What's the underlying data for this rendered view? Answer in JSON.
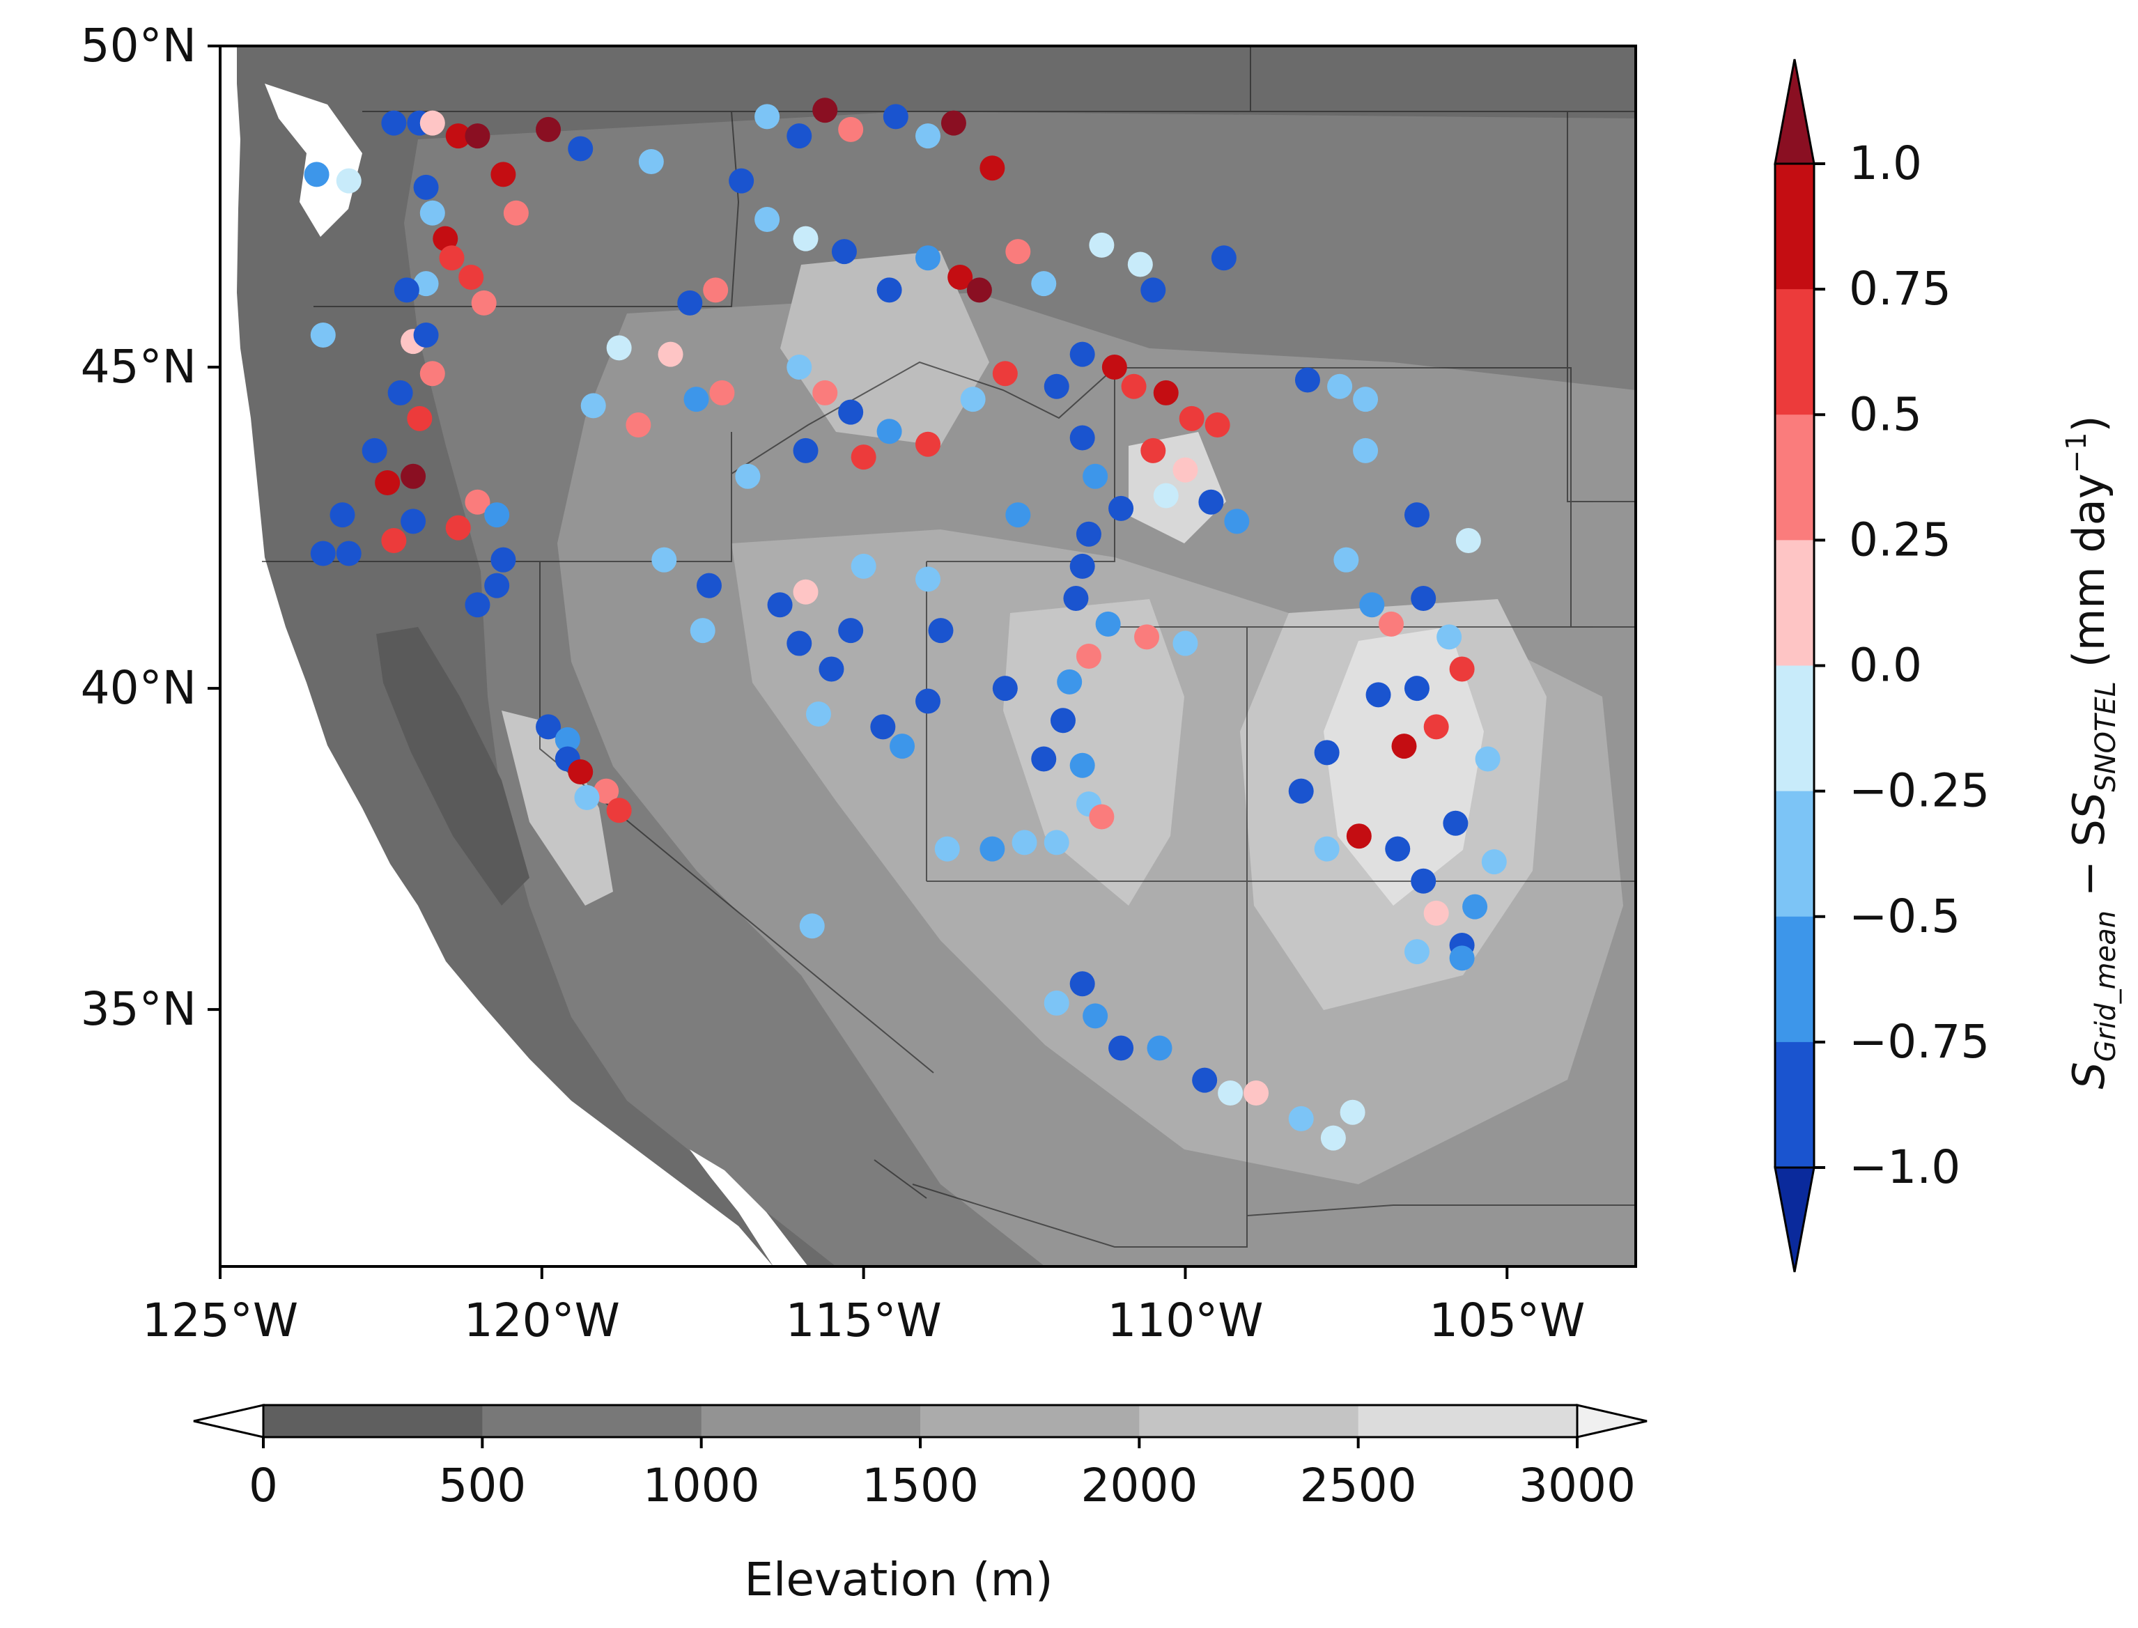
{
  "map": {
    "lat_labels": [
      "50°N",
      "45°N",
      "40°N",
      "35°N"
    ],
    "lat_values": [
      50,
      45,
      40,
      35
    ],
    "lon_labels": [
      "125°W",
      "120°W",
      "115°W",
      "110°W",
      "105°W"
    ],
    "lon_values": [
      -125,
      -120,
      -115,
      -110,
      -105
    ],
    "extent": {
      "lon_min": -125,
      "lon_max": -103,
      "lat_min": 31,
      "lat_max": 50
    }
  },
  "elevation_colorbar": {
    "label": "Elevation (m)",
    "ticks": [
      "0",
      "500",
      "1000",
      "1500",
      "2000",
      "2500",
      "3000"
    ],
    "colors": [
      "#5f5f5f",
      "#787878",
      "#939393",
      "#ababab",
      "#c4c4c4",
      "#dcdcdc"
    ],
    "under_color": "#ffffff",
    "over_color": "#f0f0f0"
  },
  "diff_colorbar": {
    "label_main": "S",
    "label_sub1": "Grid_mean",
    "label_minus": " − S",
    "label_sub2": "SNOTEL",
    "label_units": " (mm day",
    "label_exp": "−1",
    "label_close": ")",
    "ticks": [
      "1.0",
      "0.75",
      "0.5",
      "0.25",
      "0.0",
      "−0.25",
      "−0.5",
      "−0.75",
      "−1.0"
    ],
    "colors_top_to_bottom": [
      "#c40d12",
      "#ec3b3b",
      "#fa7c7c",
      "#fec5c5",
      "#c8ebfa",
      "#7cc4f6",
      "#3d96ea",
      "#1a54cf"
    ],
    "over_color": "#8a0f22",
    "under_color": "#0a2a9c"
  },
  "chart_data": {
    "type": "scatter",
    "xlabel": "",
    "ylabel": "",
    "xlim": [
      -125,
      -103
    ],
    "ylim": [
      31,
      50
    ],
    "note_values": "x = longitude (deg), y = latitude (deg), v = S_Grid_mean - S_SNOTEL (mm day^-1)",
    "points": [
      {
        "x": -123.5,
        "y": 48.0,
        "v": -0.6
      },
      {
        "x": -123.0,
        "y": 47.9,
        "v": -0.1
      },
      {
        "x": -122.3,
        "y": 48.8,
        "v": -0.9
      },
      {
        "x": -121.9,
        "y": 48.8,
        "v": -1.0
      },
      {
        "x": -121.7,
        "y": 48.8,
        "v": 0.1
      },
      {
        "x": -121.3,
        "y": 48.6,
        "v": 0.8
      },
      {
        "x": -121.0,
        "y": 48.6,
        "v": 1.1
      },
      {
        "x": -120.6,
        "y": 48.0,
        "v": 0.8
      },
      {
        "x": -120.4,
        "y": 47.4,
        "v": 0.4
      },
      {
        "x": -119.9,
        "y": 48.7,
        "v": 1.1
      },
      {
        "x": -121.8,
        "y": 47.8,
        "v": -0.9
      },
      {
        "x": -121.7,
        "y": 47.4,
        "v": -0.5
      },
      {
        "x": -121.5,
        "y": 47.0,
        "v": 0.9
      },
      {
        "x": -121.4,
        "y": 46.7,
        "v": 0.5
      },
      {
        "x": -121.8,
        "y": 46.3,
        "v": -0.3
      },
      {
        "x": -122.1,
        "y": 46.2,
        "v": -0.8
      },
      {
        "x": -121.1,
        "y": 46.4,
        "v": 0.6
      },
      {
        "x": -120.9,
        "y": 46.0,
        "v": 0.3
      },
      {
        "x": -122.0,
        "y": 45.4,
        "v": 0.2
      },
      {
        "x": -121.8,
        "y": 45.5,
        "v": -1.0
      },
      {
        "x": -123.4,
        "y": 45.5,
        "v": -0.4
      },
      {
        "x": -121.7,
        "y": 44.9,
        "v": 0.4
      },
      {
        "x": -122.2,
        "y": 44.6,
        "v": -1.0
      },
      {
        "x": -121.9,
        "y": 44.2,
        "v": 0.6
      },
      {
        "x": -122.6,
        "y": 43.7,
        "v": -0.9
      },
      {
        "x": -122.4,
        "y": 43.2,
        "v": 0.8
      },
      {
        "x": -122.0,
        "y": 43.3,
        "v": 1.1
      },
      {
        "x": -122.0,
        "y": 42.6,
        "v": -0.9
      },
      {
        "x": -122.3,
        "y": 42.3,
        "v": 0.6
      },
      {
        "x": -121.0,
        "y": 42.9,
        "v": 0.3
      },
      {
        "x": -121.3,
        "y": 42.5,
        "v": 0.6
      },
      {
        "x": -120.7,
        "y": 42.7,
        "v": -0.6
      },
      {
        "x": -120.6,
        "y": 42.0,
        "v": -1.0
      },
      {
        "x": -120.7,
        "y": 41.6,
        "v": -0.9
      },
      {
        "x": -121.0,
        "y": 41.3,
        "v": -0.8
      },
      {
        "x": -123.4,
        "y": 42.1,
        "v": -1.0
      },
      {
        "x": -123.0,
        "y": 42.1,
        "v": -1.0
      },
      {
        "x": -123.1,
        "y": 42.7,
        "v": -0.9
      },
      {
        "x": -119.4,
        "y": 48.4,
        "v": -0.9
      },
      {
        "x": -118.3,
        "y": 48.2,
        "v": -0.3
      },
      {
        "x": -118.8,
        "y": 45.3,
        "v": -0.1
      },
      {
        "x": -118.0,
        "y": 45.2,
        "v": 0.2
      },
      {
        "x": -117.7,
        "y": 46.0,
        "v": -0.8
      },
      {
        "x": -117.3,
        "y": 46.2,
        "v": 0.4
      },
      {
        "x": -119.2,
        "y": 44.4,
        "v": -0.4
      },
      {
        "x": -118.5,
        "y": 44.1,
        "v": 0.3
      },
      {
        "x": -117.2,
        "y": 44.6,
        "v": 0.3
      },
      {
        "x": -117.6,
        "y": 44.5,
        "v": -0.7
      },
      {
        "x": -116.5,
        "y": 48.9,
        "v": -0.3
      },
      {
        "x": -116.0,
        "y": 48.6,
        "v": -0.9
      },
      {
        "x": -115.6,
        "y": 49.0,
        "v": 1.1
      },
      {
        "x": -115.2,
        "y": 48.7,
        "v": 0.3
      },
      {
        "x": -114.5,
        "y": 48.9,
        "v": -0.9
      },
      {
        "x": -114.0,
        "y": 48.6,
        "v": -0.3
      },
      {
        "x": -113.6,
        "y": 48.8,
        "v": 1.1
      },
      {
        "x": -113.0,
        "y": 48.1,
        "v": 0.9
      },
      {
        "x": -116.9,
        "y": 47.9,
        "v": -1.0
      },
      {
        "x": -116.5,
        "y": 47.3,
        "v": -0.4
      },
      {
        "x": -115.9,
        "y": 47.0,
        "v": -0.1
      },
      {
        "x": -115.3,
        "y": 46.8,
        "v": -0.9
      },
      {
        "x": -114.6,
        "y": 46.2,
        "v": -1.0
      },
      {
        "x": -114.0,
        "y": 46.7,
        "v": -0.6
      },
      {
        "x": -113.5,
        "y": 46.4,
        "v": 0.9
      },
      {
        "x": -113.2,
        "y": 46.2,
        "v": 1.1
      },
      {
        "x": -112.6,
        "y": 46.8,
        "v": 0.4
      },
      {
        "x": -112.2,
        "y": 46.3,
        "v": -0.3
      },
      {
        "x": -111.3,
        "y": 46.9,
        "v": -0.1
      },
      {
        "x": -110.7,
        "y": 46.6,
        "v": -0.2
      },
      {
        "x": -110.5,
        "y": 46.2,
        "v": -0.9
      },
      {
        "x": -109.4,
        "y": 46.7,
        "v": -1.0
      },
      {
        "x": -116.0,
        "y": 45.0,
        "v": -0.4
      },
      {
        "x": -115.6,
        "y": 44.6,
        "v": 0.4
      },
      {
        "x": -115.2,
        "y": 44.3,
        "v": -0.9
      },
      {
        "x": -114.6,
        "y": 44.0,
        "v": -0.6
      },
      {
        "x": -114.0,
        "y": 43.8,
        "v": 0.6
      },
      {
        "x": -115.9,
        "y": 43.7,
        "v": -1.0
      },
      {
        "x": -115.0,
        "y": 43.6,
        "v": 0.7
      },
      {
        "x": -113.3,
        "y": 44.5,
        "v": -0.4
      },
      {
        "x": -112.8,
        "y": 44.9,
        "v": 0.6
      },
      {
        "x": -112.0,
        "y": 44.7,
        "v": -0.9
      },
      {
        "x": -116.8,
        "y": 43.3,
        "v": -0.3
      },
      {
        "x": -111.6,
        "y": 45.2,
        "v": -1.0
      },
      {
        "x": -111.1,
        "y": 45.0,
        "v": 0.9
      },
      {
        "x": -110.8,
        "y": 44.7,
        "v": 0.6
      },
      {
        "x": -110.3,
        "y": 44.6,
        "v": 1.0
      },
      {
        "x": -109.9,
        "y": 44.2,
        "v": 0.7
      },
      {
        "x": -110.5,
        "y": 43.7,
        "v": 0.6
      },
      {
        "x": -110.0,
        "y": 43.4,
        "v": 0.2
      },
      {
        "x": -110.3,
        "y": 43.0,
        "v": -0.1
      },
      {
        "x": -109.6,
        "y": 42.9,
        "v": -0.9
      },
      {
        "x": -109.2,
        "y": 42.6,
        "v": -0.7
      },
      {
        "x": -109.5,
        "y": 44.1,
        "v": 0.5
      },
      {
        "x": -111.6,
        "y": 43.9,
        "v": -0.9
      },
      {
        "x": -111.4,
        "y": 43.3,
        "v": -0.6
      },
      {
        "x": -111.0,
        "y": 42.8,
        "v": -1.0
      },
      {
        "x": -111.5,
        "y": 42.4,
        "v": -0.8
      },
      {
        "x": -111.6,
        "y": 41.9,
        "v": -1.0
      },
      {
        "x": -111.7,
        "y": 41.4,
        "v": -1.0
      },
      {
        "x": -111.2,
        "y": 41.0,
        "v": -0.6
      },
      {
        "x": -110.6,
        "y": 40.8,
        "v": 0.4
      },
      {
        "x": -110.0,
        "y": 40.7,
        "v": -0.3
      },
      {
        "x": -111.5,
        "y": 40.5,
        "v": 0.3
      },
      {
        "x": -111.8,
        "y": 40.1,
        "v": -0.6
      },
      {
        "x": -111.9,
        "y": 39.5,
        "v": -0.8
      },
      {
        "x": -112.2,
        "y": 38.9,
        "v": -0.9
      },
      {
        "x": -111.6,
        "y": 38.8,
        "v": -0.6
      },
      {
        "x": -111.5,
        "y": 38.2,
        "v": -0.3
      },
      {
        "x": -112.5,
        "y": 37.6,
        "v": -0.5
      },
      {
        "x": -112.0,
        "y": 37.6,
        "v": -0.3
      },
      {
        "x": -111.3,
        "y": 38.0,
        "v": 0.4
      },
      {
        "x": -113.0,
        "y": 37.5,
        "v": -0.6
      },
      {
        "x": -113.7,
        "y": 37.5,
        "v": -0.3
      },
      {
        "x": -112.8,
        "y": 40.0,
        "v": -0.8
      },
      {
        "x": -112.6,
        "y": 42.7,
        "v": -0.6
      },
      {
        "x": -108.1,
        "y": 44.8,
        "v": -0.9
      },
      {
        "x": -107.6,
        "y": 44.7,
        "v": -0.3
      },
      {
        "x": -107.2,
        "y": 44.5,
        "v": -0.5
      },
      {
        "x": -107.2,
        "y": 43.7,
        "v": -0.4
      },
      {
        "x": -106.4,
        "y": 42.7,
        "v": -0.9
      },
      {
        "x": -105.6,
        "y": 42.3,
        "v": -0.2
      },
      {
        "x": -107.5,
        "y": 42.0,
        "v": -0.5
      },
      {
        "x": -107.1,
        "y": 41.3,
        "v": -0.6
      },
      {
        "x": -106.8,
        "y": 41.0,
        "v": 0.3
      },
      {
        "x": -106.3,
        "y": 41.4,
        "v": -1.0
      },
      {
        "x": -105.9,
        "y": 40.8,
        "v": -0.4
      },
      {
        "x": -105.7,
        "y": 40.3,
        "v": 0.7
      },
      {
        "x": -106.4,
        "y": 40.0,
        "v": -0.9
      },
      {
        "x": -107.0,
        "y": 39.9,
        "v": -0.8
      },
      {
        "x": -106.1,
        "y": 39.4,
        "v": 0.6
      },
      {
        "x": -106.6,
        "y": 39.1,
        "v": 0.9
      },
      {
        "x": -107.8,
        "y": 39.0,
        "v": -1.0
      },
      {
        "x": -108.2,
        "y": 38.4,
        "v": -1.0
      },
      {
        "x": -107.3,
        "y": 37.7,
        "v": 1.0
      },
      {
        "x": -107.8,
        "y": 37.5,
        "v": -0.4
      },
      {
        "x": -106.7,
        "y": 37.5,
        "v": -0.9
      },
      {
        "x": -106.3,
        "y": 37.0,
        "v": -1.0
      },
      {
        "x": -105.8,
        "y": 37.9,
        "v": -0.8
      },
      {
        "x": -105.2,
        "y": 37.3,
        "v": -0.4
      },
      {
        "x": -105.5,
        "y": 36.6,
        "v": -0.6
      },
      {
        "x": -105.7,
        "y": 36.0,
        "v": -0.9
      },
      {
        "x": -106.1,
        "y": 36.5,
        "v": 0.2
      },
      {
        "x": -105.3,
        "y": 38.9,
        "v": -0.4
      },
      {
        "x": -106.4,
        "y": 35.9,
        "v": -0.3
      },
      {
        "x": -113.8,
        "y": 40.9,
        "v": -1.0
      },
      {
        "x": -114.0,
        "y": 41.7,
        "v": -0.3
      },
      {
        "x": -115.0,
        "y": 41.9,
        "v": -0.4
      },
      {
        "x": -115.9,
        "y": 41.5,
        "v": 0.2
      },
      {
        "x": -116.3,
        "y": 41.3,
        "v": -1.0
      },
      {
        "x": -117.4,
        "y": 41.6,
        "v": -0.9
      },
      {
        "x": -117.5,
        "y": 40.9,
        "v": -0.4
      },
      {
        "x": -116.0,
        "y": 40.7,
        "v": -0.8
      },
      {
        "x": -115.2,
        "y": 40.9,
        "v": -1.0
      },
      {
        "x": -115.5,
        "y": 40.3,
        "v": -0.8
      },
      {
        "x": -115.7,
        "y": 39.6,
        "v": -0.3
      },
      {
        "x": -114.7,
        "y": 39.4,
        "v": -0.8
      },
      {
        "x": -114.4,
        "y": 39.1,
        "v": -0.6
      },
      {
        "x": -114.0,
        "y": 39.8,
        "v": -1.0
      },
      {
        "x": -118.1,
        "y": 42.0,
        "v": -0.3
      },
      {
        "x": -119.9,
        "y": 39.4,
        "v": -1.0
      },
      {
        "x": -119.6,
        "y": 39.2,
        "v": -0.6
      },
      {
        "x": -119.6,
        "y": 38.9,
        "v": -1.0
      },
      {
        "x": -119.4,
        "y": 38.7,
        "v": 0.9
      },
      {
        "x": -119.0,
        "y": 38.4,
        "v": 0.4
      },
      {
        "x": -118.8,
        "y": 38.1,
        "v": 0.6
      },
      {
        "x": -119.3,
        "y": 38.3,
        "v": -0.5
      },
      {
        "x": -115.8,
        "y": 36.3,
        "v": -0.5
      },
      {
        "x": -112.0,
        "y": 35.1,
        "v": -0.4
      },
      {
        "x": -111.6,
        "y": 35.4,
        "v": -1.0
      },
      {
        "x": -111.4,
        "y": 34.9,
        "v": -0.6
      },
      {
        "x": -111.0,
        "y": 34.4,
        "v": -0.8
      },
      {
        "x": -110.4,
        "y": 34.4,
        "v": -0.7
      },
      {
        "x": -109.7,
        "y": 33.9,
        "v": -0.9
      },
      {
        "x": -109.3,
        "y": 33.7,
        "v": -0.2
      },
      {
        "x": -108.9,
        "y": 33.7,
        "v": 0.2
      },
      {
        "x": -108.2,
        "y": 33.3,
        "v": -0.3
      },
      {
        "x": -107.7,
        "y": 33.0,
        "v": -0.2
      },
      {
        "x": -107.4,
        "y": 33.4,
        "v": -0.2
      },
      {
        "x": -105.7,
        "y": 35.8,
        "v": -0.6
      }
    ]
  }
}
